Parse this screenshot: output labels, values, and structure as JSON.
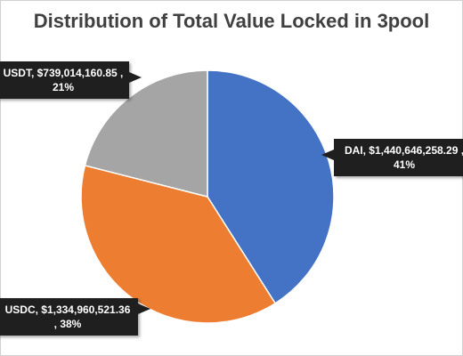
{
  "chart_data": {
    "type": "pie",
    "title": "Distribution of Total Value Locked in 3pool",
    "slices": [
      {
        "name": "DAI",
        "value": 1440646258.29,
        "percent": 41,
        "color": "#4472C4",
        "label_line1": "DAI,  $1,440,646,258.29 ,",
        "label_line2": "41%"
      },
      {
        "name": "USDC",
        "value": 1334960521.36,
        "percent": 38,
        "color": "#ED7D31",
        "label_line1": "USDC,  $1,334,960,521.36",
        "label_line2": ", 38%"
      },
      {
        "name": "USDT",
        "value": 739014160.85,
        "percent": 21,
        "color": "#A5A5A5",
        "label_line1": "USDT,  $739,014,160.85 ,",
        "label_line2": "21%"
      }
    ],
    "start_angle_deg": 0,
    "direction": "clockwise",
    "legend": "none"
  }
}
